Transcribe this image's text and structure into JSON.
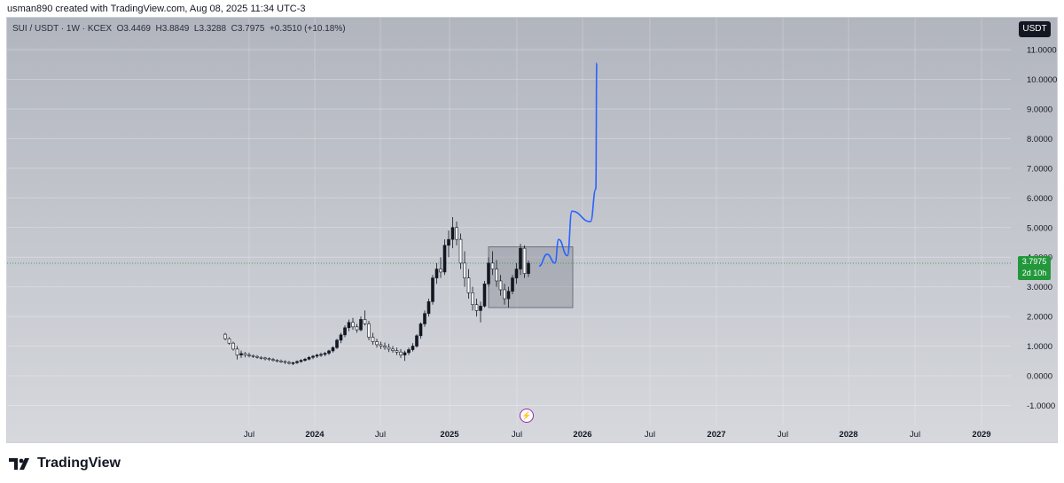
{
  "header": {
    "caption": "usman890 created with TradingView.com, Aug 08, 2025 11:34 UTC-3"
  },
  "legend": {
    "text": "SUI / USDT · 1W · KCEX  O3.4469  H3.8849  L3.3288  C3.7975  +0.3510 (+10.18%)"
  },
  "unit_badge": "USDT",
  "price_badge": {
    "price": "3.7975",
    "countdown": "2d 10h"
  },
  "brand": {
    "name": "TradingView"
  },
  "colors": {
    "up": "#131722",
    "down": "#ffffff",
    "projection": "#2962ff",
    "badge": "#22973b",
    "box": "rgba(120,123,134,0.35)"
  },
  "chart_data": {
    "type": "candlestick",
    "symbol": "SUI / USDT",
    "interval": "1W",
    "exchange": "KCEX",
    "last_bar": {
      "open": 3.4469,
      "high": 3.8849,
      "low": 3.3288,
      "close": 3.7975,
      "change": 0.351,
      "change_pct": "+10.18%"
    },
    "y_axis": {
      "min": -1.3,
      "max": 11.8,
      "ticks": [
        "-1.0000",
        "0.0000",
        "1.0000",
        "2.0000",
        "3.0000",
        "4.0000",
        "5.0000",
        "6.0000",
        "7.0000",
        "8.0000",
        "9.0000",
        "10.0000",
        "11.0000"
      ]
    },
    "x_axis": {
      "ticks": [
        "Jul",
        "2024",
        "Jul",
        "2025",
        "Jul",
        "2026",
        "Jul",
        "2027",
        "Jul",
        "2028",
        "Jul",
        "2029"
      ]
    },
    "series_ohlc_approx": [
      [
        1.4,
        1.45,
        1.2,
        1.25
      ],
      [
        1.25,
        1.3,
        1.05,
        1.1
      ],
      [
        1.1,
        1.15,
        0.85,
        0.9
      ],
      [
        0.9,
        1.0,
        0.55,
        0.7
      ],
      [
        0.7,
        0.85,
        0.6,
        0.75
      ],
      [
        0.75,
        0.8,
        0.62,
        0.7
      ],
      [
        0.7,
        0.78,
        0.62,
        0.68
      ],
      [
        0.68,
        0.72,
        0.6,
        0.65
      ],
      [
        0.65,
        0.7,
        0.58,
        0.62
      ],
      [
        0.62,
        0.66,
        0.55,
        0.6
      ],
      [
        0.6,
        0.64,
        0.52,
        0.58
      ],
      [
        0.58,
        0.62,
        0.5,
        0.55
      ],
      [
        0.55,
        0.6,
        0.48,
        0.52
      ],
      [
        0.52,
        0.56,
        0.45,
        0.5
      ],
      [
        0.5,
        0.55,
        0.44,
        0.48
      ],
      [
        0.48,
        0.52,
        0.4,
        0.45
      ],
      [
        0.45,
        0.5,
        0.38,
        0.42
      ],
      [
        0.42,
        0.48,
        0.36,
        0.44
      ],
      [
        0.44,
        0.52,
        0.4,
        0.48
      ],
      [
        0.48,
        0.56,
        0.44,
        0.52
      ],
      [
        0.52,
        0.6,
        0.48,
        0.56
      ],
      [
        0.56,
        0.66,
        0.52,
        0.62
      ],
      [
        0.62,
        0.7,
        0.56,
        0.66
      ],
      [
        0.66,
        0.74,
        0.6,
        0.7
      ],
      [
        0.7,
        0.78,
        0.64,
        0.72
      ],
      [
        0.72,
        0.8,
        0.66,
        0.76
      ],
      [
        0.76,
        0.88,
        0.7,
        0.84
      ],
      [
        0.84,
        1.0,
        0.78,
        0.95
      ],
      [
        0.95,
        1.25,
        0.9,
        1.2
      ],
      [
        1.2,
        1.45,
        1.1,
        1.38
      ],
      [
        1.38,
        1.7,
        1.3,
        1.62
      ],
      [
        1.62,
        1.9,
        1.5,
        1.8
      ],
      [
        1.8,
        1.95,
        1.55,
        1.65
      ],
      [
        1.65,
        1.75,
        1.45,
        1.55
      ],
      [
        1.55,
        2.0,
        1.5,
        1.9
      ],
      [
        1.9,
        2.2,
        1.7,
        1.75
      ],
      [
        1.75,
        1.85,
        1.2,
        1.3
      ],
      [
        1.3,
        1.45,
        1.05,
        1.15
      ],
      [
        1.15,
        1.25,
        0.95,
        1.05
      ],
      [
        1.05,
        1.15,
        0.9,
        1.0
      ],
      [
        1.0,
        1.12,
        0.88,
        0.96
      ],
      [
        0.96,
        1.08,
        0.8,
        0.9
      ],
      [
        0.9,
        1.0,
        0.78,
        0.85
      ],
      [
        0.85,
        0.95,
        0.7,
        0.8
      ],
      [
        0.8,
        0.9,
        0.6,
        0.7
      ],
      [
        0.7,
        0.85,
        0.5,
        0.78
      ],
      [
        0.78,
        0.95,
        0.7,
        0.88
      ],
      [
        0.88,
        1.1,
        0.82,
        1.0
      ],
      [
        1.0,
        1.4,
        0.95,
        1.35
      ],
      [
        1.35,
        1.8,
        1.25,
        1.75
      ],
      [
        1.75,
        2.2,
        1.65,
        2.1
      ],
      [
        2.1,
        2.6,
        2.0,
        2.5
      ],
      [
        2.5,
        3.4,
        2.4,
        3.3
      ],
      [
        3.3,
        3.8,
        3.1,
        3.6
      ],
      [
        3.6,
        4.0,
        3.3,
        3.5
      ],
      [
        3.5,
        4.6,
        3.4,
        4.4
      ],
      [
        4.4,
        4.9,
        4.0,
        4.6
      ],
      [
        4.6,
        5.35,
        4.3,
        5.0
      ],
      [
        5.0,
        5.2,
        4.4,
        4.6
      ],
      [
        4.6,
        4.8,
        3.6,
        3.8
      ],
      [
        3.8,
        4.2,
        3.0,
        3.3
      ],
      [
        3.3,
        3.6,
        2.6,
        2.8
      ],
      [
        2.8,
        3.0,
        2.2,
        2.4
      ],
      [
        2.4,
        2.6,
        2.0,
        2.2
      ],
      [
        2.2,
        2.5,
        1.8,
        2.35
      ],
      [
        2.35,
        3.2,
        2.3,
        3.1
      ],
      [
        3.1,
        4.0,
        3.0,
        3.8
      ],
      [
        3.8,
        4.2,
        3.4,
        3.6
      ],
      [
        3.6,
        3.9,
        3.0,
        3.2
      ],
      [
        3.2,
        3.4,
        2.7,
        2.9
      ],
      [
        2.9,
        3.1,
        2.4,
        2.6
      ],
      [
        2.6,
        3.0,
        2.3,
        2.85
      ],
      [
        2.85,
        3.4,
        2.75,
        3.3
      ],
      [
        3.3,
        3.8,
        3.1,
        3.6
      ],
      [
        3.6,
        4.45,
        3.4,
        4.3
      ],
      [
        4.3,
        4.4,
        3.3,
        3.45
      ],
      [
        3.4469,
        3.8849,
        3.3288,
        3.7975
      ]
    ],
    "annotations": [
      {
        "type": "rectangle",
        "label": "range box",
        "x_range": [
          "2025-03",
          "2025-10"
        ],
        "y_range": [
          2.3,
          4.35
        ]
      },
      {
        "type": "projection_path",
        "color": "#2962ff",
        "points": [
          [
            3.7
          ],
          [
            4.1
          ],
          [
            3.8
          ],
          [
            4.6
          ],
          [
            4.05
          ],
          [
            5.55
          ],
          [
            5.2
          ],
          [
            6.3
          ],
          [
            10.55
          ]
        ]
      }
    ],
    "current_price_line": 3.7975
  }
}
